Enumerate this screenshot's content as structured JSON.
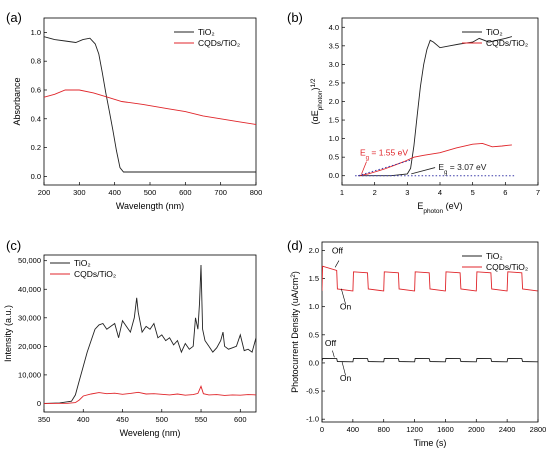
{
  "colors": {
    "tio2": "#222222",
    "cqd": "#e0262b",
    "dash": "#3a3aa8",
    "axis": "#000000"
  },
  "chart_data": [
    {
      "panel": "(a)",
      "type": "line",
      "xlabel": "Wavelength (nm)",
      "ylabel": "Absorbance",
      "xlim": [
        200,
        800
      ],
      "ylim": [
        -0.06,
        1.1
      ],
      "xticks": [
        200,
        300,
        400,
        500,
        600,
        700,
        800
      ],
      "yticks": [
        0.0,
        0.2,
        0.4,
        0.6,
        0.8,
        1.0
      ],
      "ytick_labels": [
        "0.0",
        "0.2",
        "0.4",
        "0.6",
        "0.8",
        "1.0"
      ],
      "legend_position": "top-right",
      "series": [
        {
          "name": "TiO₂",
          "color_key": "tio2",
          "x": [
            200,
            230,
            260,
            290,
            310,
            330,
            345,
            355,
            365,
            375,
            385,
            395,
            405,
            415,
            425,
            440,
            500,
            600,
            700,
            800
          ],
          "y": [
            0.97,
            0.95,
            0.94,
            0.93,
            0.95,
            0.96,
            0.92,
            0.85,
            0.72,
            0.58,
            0.45,
            0.32,
            0.18,
            0.06,
            0.03,
            0.03,
            0.03,
            0.03,
            0.03,
            0.03
          ]
        },
        {
          "name": "CQDs/TiO₂",
          "color_key": "cqd",
          "x": [
            200,
            230,
            260,
            300,
            340,
            380,
            420,
            480,
            550,
            600,
            650,
            700,
            750,
            800
          ],
          "y": [
            0.55,
            0.57,
            0.6,
            0.6,
            0.58,
            0.55,
            0.52,
            0.5,
            0.47,
            0.45,
            0.42,
            0.4,
            0.38,
            0.36
          ]
        }
      ]
    },
    {
      "panel": "(b)",
      "type": "line",
      "xlabel": "E",
      "xlabel_sub": "photon",
      "xlabel_rest": " (eV)",
      "ylabel": "(αE",
      "ylabel_sub": "photon",
      "ylabel_rest": ")",
      "ylabel_sup": "1/2",
      "xlim": [
        1,
        7
      ],
      "ylim": [
        -0.25,
        4.25
      ],
      "xticks": [
        1,
        2,
        3,
        4,
        5,
        6,
        7
      ],
      "yticks": [
        0.0,
        0.5,
        1.0,
        1.5,
        2.0,
        2.5,
        3.0,
        3.5,
        4.0
      ],
      "ytick_labels": [
        "0.0",
        "0.5",
        "1.0",
        "1.5",
        "2.0",
        "2.5",
        "3.0",
        "3.5",
        "4.0"
      ],
      "legend_position": "top-right",
      "series": [
        {
          "name": "TiO₂",
          "color_key": "tio2",
          "x": [
            1.5,
            2.5,
            3.0,
            3.1,
            3.2,
            3.3,
            3.4,
            3.5,
            3.6,
            3.7,
            3.8,
            4.0,
            4.3,
            4.6,
            5.0,
            5.2,
            5.5,
            6.0,
            6.2
          ],
          "y": [
            0.0,
            0.0,
            0.05,
            0.2,
            0.8,
            1.6,
            2.4,
            3.0,
            3.4,
            3.65,
            3.6,
            3.45,
            3.5,
            3.55,
            3.6,
            3.7,
            3.6,
            3.7,
            3.75
          ]
        },
        {
          "name": "CQDs/TiO₂",
          "color_key": "cqd",
          "x": [
            1.5,
            1.8,
            2.0,
            2.3,
            2.6,
            2.9,
            3.0,
            3.2,
            3.5,
            4.0,
            4.5,
            5.0,
            5.3,
            5.6,
            5.9,
            6.2
          ],
          "y": [
            0.0,
            0.05,
            0.1,
            0.18,
            0.28,
            0.38,
            0.42,
            0.5,
            0.55,
            0.62,
            0.75,
            0.85,
            0.87,
            0.78,
            0.8,
            0.83
          ]
        },
        {
          "name": "baseline",
          "color_key": "dash",
          "dash": true,
          "x": [
            1.4,
            6.3
          ],
          "y": [
            0.0,
            0.0
          ]
        },
        {
          "name": "tangent",
          "color_key": "dash",
          "dash": true,
          "x": [
            1.5,
            3.1
          ],
          "y": [
            0.0,
            0.42
          ]
        }
      ],
      "annotations": [
        {
          "text": "E",
          "sub": "g",
          "rest": " = 1.55 eV",
          "color_key": "cqd",
          "x": 1.55,
          "y": 0.55
        },
        {
          "text": "E",
          "sub": "g",
          "rest": " = 3.07 eV",
          "color_key": "tio2",
          "x": 3.95,
          "y": 0.16
        }
      ]
    },
    {
      "panel": "(c)",
      "type": "line",
      "xlabel": "Weveleng (nm)",
      "ylabel": "Intensity (a.u.)",
      "xlim": [
        350,
        620
      ],
      "ylim": [
        -3000,
        52000
      ],
      "xticks": [
        350,
        400,
        450,
        500,
        550,
        600
      ],
      "yticks": [
        0,
        10000,
        20000,
        30000,
        40000,
        50000
      ],
      "ytick_labels": [
        "0",
        "10,000",
        "20,000",
        "30,000",
        "40,000",
        "50,000"
      ],
      "legend_position": "top-left",
      "series": [
        {
          "name": "TiO₂",
          "color_key": "tio2",
          "x": [
            350,
            370,
            385,
            390,
            395,
            400,
            405,
            410,
            415,
            420,
            425,
            430,
            435,
            440,
            445,
            450,
            455,
            460,
            465,
            468,
            470,
            475,
            480,
            485,
            490,
            495,
            500,
            505,
            510,
            515,
            520,
            525,
            530,
            535,
            540,
            543,
            546,
            548,
            550,
            552,
            555,
            560,
            565,
            570,
            575,
            578,
            580,
            585,
            590,
            595,
            600,
            605,
            610,
            615,
            620
          ],
          "y": [
            0,
            200,
            800,
            3000,
            8000,
            13000,
            18000,
            22000,
            26000,
            27500,
            28000,
            26000,
            27000,
            28000,
            23000,
            29000,
            27000,
            25000,
            30000,
            37000,
            32000,
            25000,
            27000,
            26000,
            28000,
            23000,
            24000,
            22000,
            23000,
            20500,
            22000,
            18000,
            21000,
            19000,
            20000,
            30000,
            26000,
            35000,
            48500,
            26000,
            22000,
            20000,
            18000,
            19500,
            22000,
            25000,
            20000,
            19000,
            19500,
            20000,
            24000,
            18500,
            19000,
            18000,
            23000
          ]
        },
        {
          "name": "CQDs/TiO₂",
          "color_key": "cqd",
          "x": [
            350,
            380,
            390,
            395,
            400,
            410,
            420,
            430,
            440,
            450,
            460,
            470,
            480,
            490,
            500,
            510,
            520,
            530,
            540,
            546,
            550,
            553,
            560,
            570,
            580,
            590,
            600,
            610,
            620
          ],
          "y": [
            0,
            50,
            300,
            1200,
            2600,
            3300,
            3800,
            3400,
            3600,
            3200,
            3500,
            3900,
            3300,
            3400,
            3200,
            3000,
            3300,
            2900,
            3100,
            3500,
            6000,
            3400,
            3000,
            3100,
            2800,
            3000,
            2900,
            3100,
            3000
          ]
        }
      ]
    },
    {
      "panel": "(d)",
      "type": "line",
      "xlabel": "Time (s)",
      "ylabel": "Photocurrent Density (uA/cm",
      "ylabel_sup": "2",
      "ylabel_rest": ")",
      "xlim": [
        0,
        2800
      ],
      "ylim": [
        -1.05,
        2.15
      ],
      "xticks": [
        0,
        400,
        800,
        1200,
        1600,
        2000,
        2400,
        2800
      ],
      "yticks": [
        -1.0,
        -0.5,
        0.0,
        0.5,
        1.0,
        1.5,
        2.0
      ],
      "ytick_labels": [
        "-1.0",
        "-0.5",
        "0.0",
        "0.5",
        "1.0",
        "1.5",
        "2.0"
      ],
      "legend_position": "top-right",
      "series": [
        {
          "name": "TiO₂",
          "color_key": "tio2",
          "pulse": true,
          "start": 0,
          "end": 2700,
          "period": 400,
          "on_offset": 0,
          "off_offset": 200,
          "high": 0.08,
          "low": 0.02
        },
        {
          "name": "CQDs/TiO₂",
          "color_key": "cqd",
          "pulse": true,
          "start": 0,
          "end": 2700,
          "period": 400,
          "on_offset": 0,
          "off_offset": 200,
          "high": 1.62,
          "low": 1.28,
          "initial_high": 1.72
        }
      ],
      "annotations": [
        {
          "text": "Off",
          "x": 200,
          "y": 1.95
        },
        {
          "text": "On",
          "x": 305,
          "y": 0.95
        },
        {
          "text": "Off",
          "x": 110,
          "y": 0.3
        },
        {
          "text": "On",
          "x": 305,
          "y": -0.32
        }
      ]
    }
  ]
}
